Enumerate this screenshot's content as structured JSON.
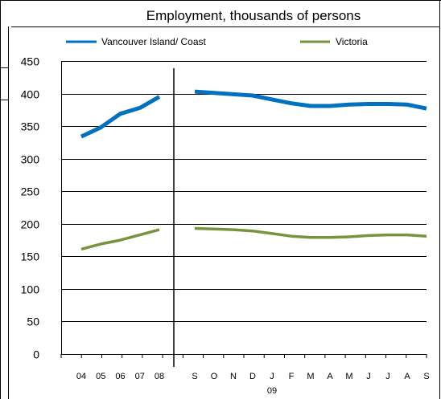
{
  "chart_data": {
    "type": "line",
    "title": "Employment, thousands of persons",
    "yticks": [
      0,
      50,
      100,
      150,
      200,
      250,
      300,
      350,
      400,
      450
    ],
    "ylim": [
      0,
      450
    ],
    "grid": true,
    "legend_position": "top",
    "annual_categories": [
      "04",
      "05",
      "06",
      "07",
      "08"
    ],
    "monthly_categories": [
      "S",
      "O",
      "N",
      "D",
      "J",
      "F",
      "M",
      "A",
      "M",
      "J",
      "J",
      "A",
      "S"
    ],
    "monthly_year_label": "09",
    "series": [
      {
        "name": "Vancouver Island/ Coast",
        "color": "#0070C0",
        "annual_values": [
          334,
          348,
          369,
          378,
          395
        ],
        "monthly_values": [
          403,
          401,
          399,
          397,
          391,
          385,
          381,
          381,
          383,
          384,
          384,
          383,
          377
        ]
      },
      {
        "name": "Victoria",
        "color": "#77933C",
        "annual_values": [
          161,
          169,
          175,
          183,
          191
        ],
        "monthly_values": [
          193,
          192,
          191,
          189,
          185,
          181,
          179,
          179,
          180,
          182,
          183,
          183,
          181
        ]
      }
    ]
  }
}
